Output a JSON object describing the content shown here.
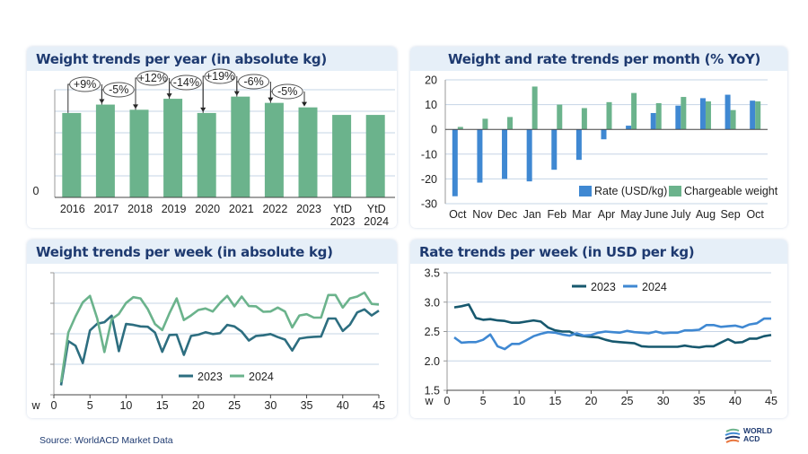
{
  "colors": {
    "title": "#1e3a70",
    "green": "#6bb38c",
    "blue": "#3f88d2",
    "teal": "#2d6e80",
    "navy_teal": "#17586e",
    "grid": "#c5d4e6"
  },
  "footer": {
    "source": "Source: WorldACD Market Data",
    "logo_text": [
      "WORLD",
      "ACD"
    ]
  },
  "chart_data": [
    {
      "id": "yearly",
      "type": "bar",
      "title": "Weight trends per year (in absolute kg)",
      "categories": [
        [
          "2016"
        ],
        [
          "2017"
        ],
        [
          "2018"
        ],
        [
          "2019"
        ],
        [
          "2020"
        ],
        [
          "2021"
        ],
        [
          "2022"
        ],
        [
          "2023"
        ],
        [
          "YtD",
          "2023"
        ],
        [
          "YtD",
          "2024"
        ]
      ],
      "values": [
        3.92,
        4.31,
        4.07,
        4.58,
        3.92,
        4.68,
        4.39,
        4.18,
        3.83,
        3.83
      ],
      "ylim": [
        0,
        5
      ],
      "y_tick_labels": [
        "0"
      ],
      "grid": true,
      "annotations": [
        "+9%",
        "-5%",
        "+12%",
        "-14%",
        "+19%",
        "-6%",
        "-5%"
      ]
    },
    {
      "id": "monthly",
      "type": "bar",
      "title": "Weight and rate trends per month (% YoY)",
      "categories": [
        "Oct",
        "Nov",
        "Dec",
        "Jan",
        "Feb",
        "Mar",
        "Apr",
        "May",
        "June",
        "July",
        "Aug",
        "Sep",
        "Oct"
      ],
      "series": [
        {
          "name": "Rate (USD/kg)",
          "color": "#3f88d2",
          "values": [
            -27,
            -21.5,
            -20,
            -21,
            -16.3,
            -12.3,
            -4,
            1.5,
            6.6,
            9.6,
            12.6,
            14,
            11.6
          ]
        },
        {
          "name": "Chargeable weight",
          "color": "#6bb38c",
          "values": [
            1,
            4.3,
            5,
            17.3,
            10,
            8.6,
            11,
            14.7,
            10.6,
            13.1,
            11.3,
            7.8,
            11.3
          ]
        }
      ],
      "ylim": [
        -30,
        20
      ],
      "y_ticks": [
        20,
        10,
        0,
        -10,
        -20,
        -30
      ],
      "grid": true,
      "legend": "bottom-right"
    },
    {
      "id": "weekly-weight",
      "type": "line",
      "title": "Weight trends per week (in absolute kg)",
      "xlabel": "w",
      "xlim": [
        0,
        45
      ],
      "x_ticks": [
        0,
        5,
        10,
        15,
        20,
        25,
        30,
        35,
        40,
        45
      ],
      "ylim": [
        0,
        4
      ],
      "grid": true,
      "legend": "bottom-center",
      "x": [
        1,
        2,
        3,
        4,
        5,
        6,
        7,
        8,
        9,
        10,
        11,
        12,
        13,
        14,
        15,
        16,
        17,
        18,
        19,
        20,
        21,
        22,
        23,
        24,
        25,
        26,
        27,
        28,
        29,
        30,
        31,
        32,
        33,
        34,
        35,
        36,
        37,
        38,
        39,
        40,
        41,
        42,
        43,
        44,
        45
      ],
      "series": [
        {
          "name": "2023",
          "color": "#2d6e80",
          "values": [
            0.31,
            1.76,
            1.61,
            1.04,
            2.11,
            2.33,
            2.38,
            2.59,
            1.43,
            2.32,
            2.29,
            2.24,
            2.23,
            2.04,
            1.41,
            1.96,
            1.97,
            1.31,
            1.93,
            1.97,
            2.05,
            1.99,
            2.02,
            2.29,
            2.24,
            2.07,
            1.78,
            1.93,
            1.95,
            1.99,
            1.89,
            1.81,
            1.45,
            1.84,
            1.88,
            1.9,
            1.91,
            2.5,
            2.5,
            2.09,
            2.3,
            2.7,
            2.8,
            2.6,
            2.76
          ]
        },
        {
          "name": "2024",
          "color": "#6bb38c",
          "values": [
            0.41,
            2.04,
            2.57,
            3.03,
            3.24,
            2.5,
            1.4,
            2.48,
            2.65,
            3.01,
            3.2,
            3.16,
            2.81,
            2.32,
            2.12,
            2.67,
            3.16,
            2.45,
            2.6,
            2.78,
            2.83,
            2.73,
            3.01,
            3.24,
            2.9,
            3.22,
            2.91,
            2.9,
            2.72,
            2.73,
            2.86,
            2.73,
            2.21,
            2.6,
            2.64,
            2.53,
            2.53,
            3.27,
            3.27,
            2.86,
            3.16,
            3.22,
            3.35,
            2.98,
            2.96
          ]
        }
      ]
    },
    {
      "id": "weekly-rate",
      "type": "line",
      "title": "Rate trends per week (in USD per kg)",
      "xlabel": "w",
      "xlim": [
        0,
        45
      ],
      "x_ticks": [
        0,
        5,
        10,
        15,
        20,
        25,
        30,
        35,
        40,
        45
      ],
      "ylim": [
        1.5,
        3.5
      ],
      "y_ticks": [
        "3.5",
        "3.0",
        "2.5",
        "2.0",
        "1.5"
      ],
      "grid": true,
      "legend": "top-center",
      "x": [
        1,
        2,
        3,
        4,
        5,
        6,
        7,
        8,
        9,
        10,
        11,
        12,
        13,
        14,
        15,
        16,
        17,
        18,
        19,
        20,
        21,
        22,
        23,
        24,
        25,
        26,
        27,
        28,
        29,
        30,
        31,
        32,
        33,
        34,
        35,
        36,
        37,
        38,
        39,
        40,
        41,
        42,
        43,
        44,
        45
      ],
      "series": [
        {
          "name": "2023",
          "color": "#17586e",
          "values": [
            2.91,
            2.93,
            2.96,
            2.73,
            2.7,
            2.71,
            2.69,
            2.68,
            2.65,
            2.65,
            2.67,
            2.69,
            2.67,
            2.57,
            2.52,
            2.5,
            2.5,
            2.44,
            2.42,
            2.41,
            2.4,
            2.36,
            2.33,
            2.32,
            2.31,
            2.3,
            2.25,
            2.24,
            2.24,
            2.24,
            2.24,
            2.24,
            2.26,
            2.24,
            2.23,
            2.25,
            2.25,
            2.31,
            2.37,
            2.31,
            2.32,
            2.38,
            2.38,
            2.42,
            2.44
          ]
        },
        {
          "name": "2024",
          "color": "#3f88d2",
          "values": [
            2.4,
            2.31,
            2.32,
            2.32,
            2.36,
            2.45,
            2.25,
            2.2,
            2.29,
            2.29,
            2.35,
            2.42,
            2.46,
            2.49,
            2.48,
            2.45,
            2.43,
            2.47,
            2.43,
            2.44,
            2.48,
            2.5,
            2.49,
            2.48,
            2.51,
            2.49,
            2.48,
            2.47,
            2.5,
            2.47,
            2.48,
            2.48,
            2.52,
            2.52,
            2.53,
            2.61,
            2.61,
            2.58,
            2.59,
            2.6,
            2.57,
            2.62,
            2.64,
            2.72,
            2.72
          ]
        }
      ]
    }
  ]
}
